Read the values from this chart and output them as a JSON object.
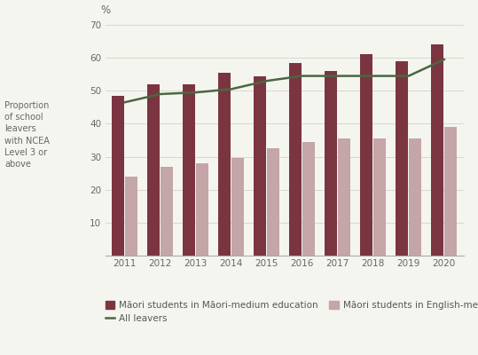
{
  "years": [
    2011,
    2012,
    2013,
    2014,
    2015,
    2016,
    2017,
    2018,
    2019,
    2020
  ],
  "maori_medium": [
    48.5,
    52.0,
    52.0,
    55.5,
    54.5,
    58.5,
    56.0,
    61.0,
    59.0,
    64.0
  ],
  "english_medium": [
    24.0,
    27.0,
    28.0,
    29.5,
    32.5,
    34.5,
    35.5,
    35.5,
    35.5,
    39.0
  ],
  "all_leavers": [
    46.5,
    49.0,
    49.5,
    50.5,
    53.0,
    54.5,
    54.5,
    54.5,
    54.5,
    59.5
  ],
  "bar_color_dark": "#7a3540",
  "bar_color_light": "#c4a5a8",
  "line_color": "#4a6741",
  "ylabel": "Proportion\nof school\nleavers\nwith NCEA\nLevel 3 or\nabove",
  "percent_label": "%",
  "ylim": [
    0,
    70
  ],
  "yticks": [
    10,
    20,
    30,
    40,
    50,
    60,
    70
  ],
  "legend_dark_label": "Māori students in Māori-medium education",
  "legend_light_label": "Māori students in English-medium education",
  "legend_line_label": "All leavers",
  "background_color": "#f5f5f0",
  "bar_width": 0.35,
  "bar_gap": 0.03
}
